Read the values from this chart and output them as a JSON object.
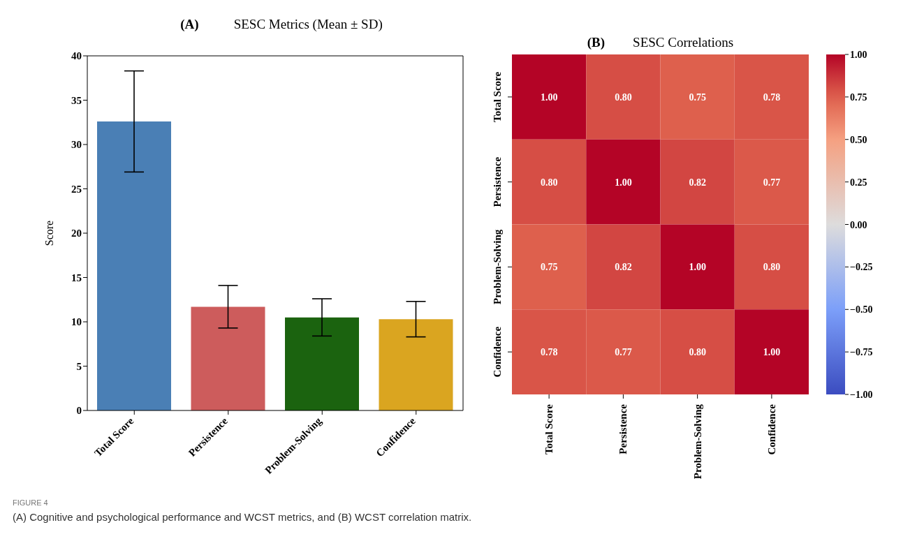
{
  "chart_data": [
    {
      "type": "bar",
      "title": "SESC Metrics (Mean ± SD)",
      "ylabel": "Score",
      "annotations": [
        "(A)"
      ],
      "categories": [
        "Total Score",
        "Persistence",
        "Problem-Solving",
        "Confidence"
      ],
      "values": [
        32.6,
        11.7,
        10.5,
        10.3
      ],
      "errors": [
        5.7,
        2.4,
        2.1,
        2.0
      ],
      "colors": [
        "#4a7fb5",
        "#cd5c5c",
        "#1b630f",
        "#daa520"
      ],
      "ylim": [
        0,
        40
      ],
      "yticks": [
        0,
        5,
        10,
        15,
        20,
        25,
        30,
        35,
        40
      ],
      "grid": false,
      "legend": false
    },
    {
      "type": "heatmap",
      "title": "SESC Correlations",
      "annotations": [
        "(B)",
        "FIGURE 4",
        "(A) Cognitive and psychological performance and WCST metrics, and (B) WCST correlation matrix."
      ],
      "categories": [
        "Total Score",
        "Persistence",
        "Problem-Solving",
        "Confidence"
      ],
      "y_categories": [
        "Total Score",
        "Persistence",
        "Problem-Solving",
        "Confidence"
      ],
      "cells": [
        [
          1.0,
          0.8,
          0.75,
          0.78
        ],
        [
          0.8,
          1.0,
          0.82,
          0.77
        ],
        [
          0.75,
          0.82,
          1.0,
          0.8
        ],
        [
          0.78,
          0.77,
          0.8,
          1.0
        ]
      ],
      "cell_labels": [
        [
          "1.00",
          "0.80",
          "0.75",
          "0.78"
        ],
        [
          "0.80",
          "1.00",
          "0.82",
          "0.77"
        ],
        [
          "0.75",
          "0.82",
          "1.00",
          "0.80"
        ],
        [
          "0.78",
          "0.77",
          "0.80",
          "1.00"
        ]
      ],
      "clim": [
        -1,
        1
      ],
      "cticks": [
        {
          "value": 1,
          "label": "1.00"
        },
        {
          "value": 0.75,
          "label": "0.75"
        },
        {
          "value": 0.5,
          "label": "0.50"
        },
        {
          "value": 0.25,
          "label": "0.25"
        },
        {
          "value": 0,
          "label": "0.00"
        },
        {
          "value": -0.25,
          "label": "−0.25"
        },
        {
          "value": -0.5,
          "label": "−0.50"
        },
        {
          "value": -0.75,
          "label": "−0.75"
        },
        {
          "value": -1,
          "label": "−1.00"
        }
      ]
    }
  ]
}
